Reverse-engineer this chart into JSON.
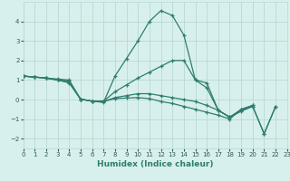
{
  "xlabel": "Humidex (Indice chaleur)",
  "x_values": [
    0,
    1,
    2,
    3,
    4,
    5,
    6,
    7,
    8,
    9,
    10,
    11,
    12,
    13,
    14,
    15,
    16,
    17,
    18,
    19,
    20,
    21,
    22,
    23
  ],
  "series": [
    [
      1.2,
      1.15,
      1.1,
      1.05,
      1.0,
      0.02,
      -0.08,
      -0.15,
      1.2,
      2.1,
      3.0,
      4.0,
      4.55,
      4.3,
      3.3,
      1.0,
      0.85,
      -0.55,
      -0.9,
      -0.6,
      -0.35,
      -1.75,
      -0.35,
      null
    ],
    [
      1.2,
      1.15,
      1.1,
      1.0,
      0.95,
      0.02,
      -0.08,
      -0.08,
      0.4,
      0.75,
      1.1,
      1.4,
      1.7,
      2.0,
      2.0,
      1.0,
      0.6,
      -0.55,
      -0.9,
      -0.55,
      -0.35,
      -1.75,
      -0.35,
      null
    ],
    [
      1.2,
      1.15,
      1.1,
      1.0,
      0.9,
      0.02,
      -0.08,
      -0.1,
      0.1,
      0.2,
      0.3,
      0.3,
      0.2,
      0.1,
      0.0,
      -0.1,
      -0.3,
      -0.55,
      -0.9,
      -0.5,
      -0.3,
      null,
      null,
      null
    ],
    [
      1.2,
      1.15,
      1.1,
      1.0,
      0.85,
      0.02,
      -0.08,
      -0.1,
      0.05,
      0.08,
      0.1,
      0.05,
      -0.1,
      -0.2,
      -0.35,
      -0.5,
      -0.65,
      -0.8,
      -1.0,
      -0.5,
      -0.3,
      null,
      null,
      null
    ]
  ],
  "line_color": "#2e7d6e",
  "bg_color": "#d8f0ed",
  "grid_color": "#b8d8d4",
  "ylim": [
    -2.5,
    5.0
  ],
  "xlim": [
    0,
    23
  ],
  "yticks": [
    -2,
    -1,
    0,
    1,
    2,
    3,
    4
  ],
  "xtick_labels": [
    "0",
    "1",
    "2",
    "3",
    "4",
    "5",
    "6",
    "7",
    "8",
    "9",
    "10",
    "11",
    "12",
    "13",
    "14",
    "15",
    "16",
    "17",
    "18",
    "19",
    "20",
    "21",
    "22",
    "23"
  ]
}
